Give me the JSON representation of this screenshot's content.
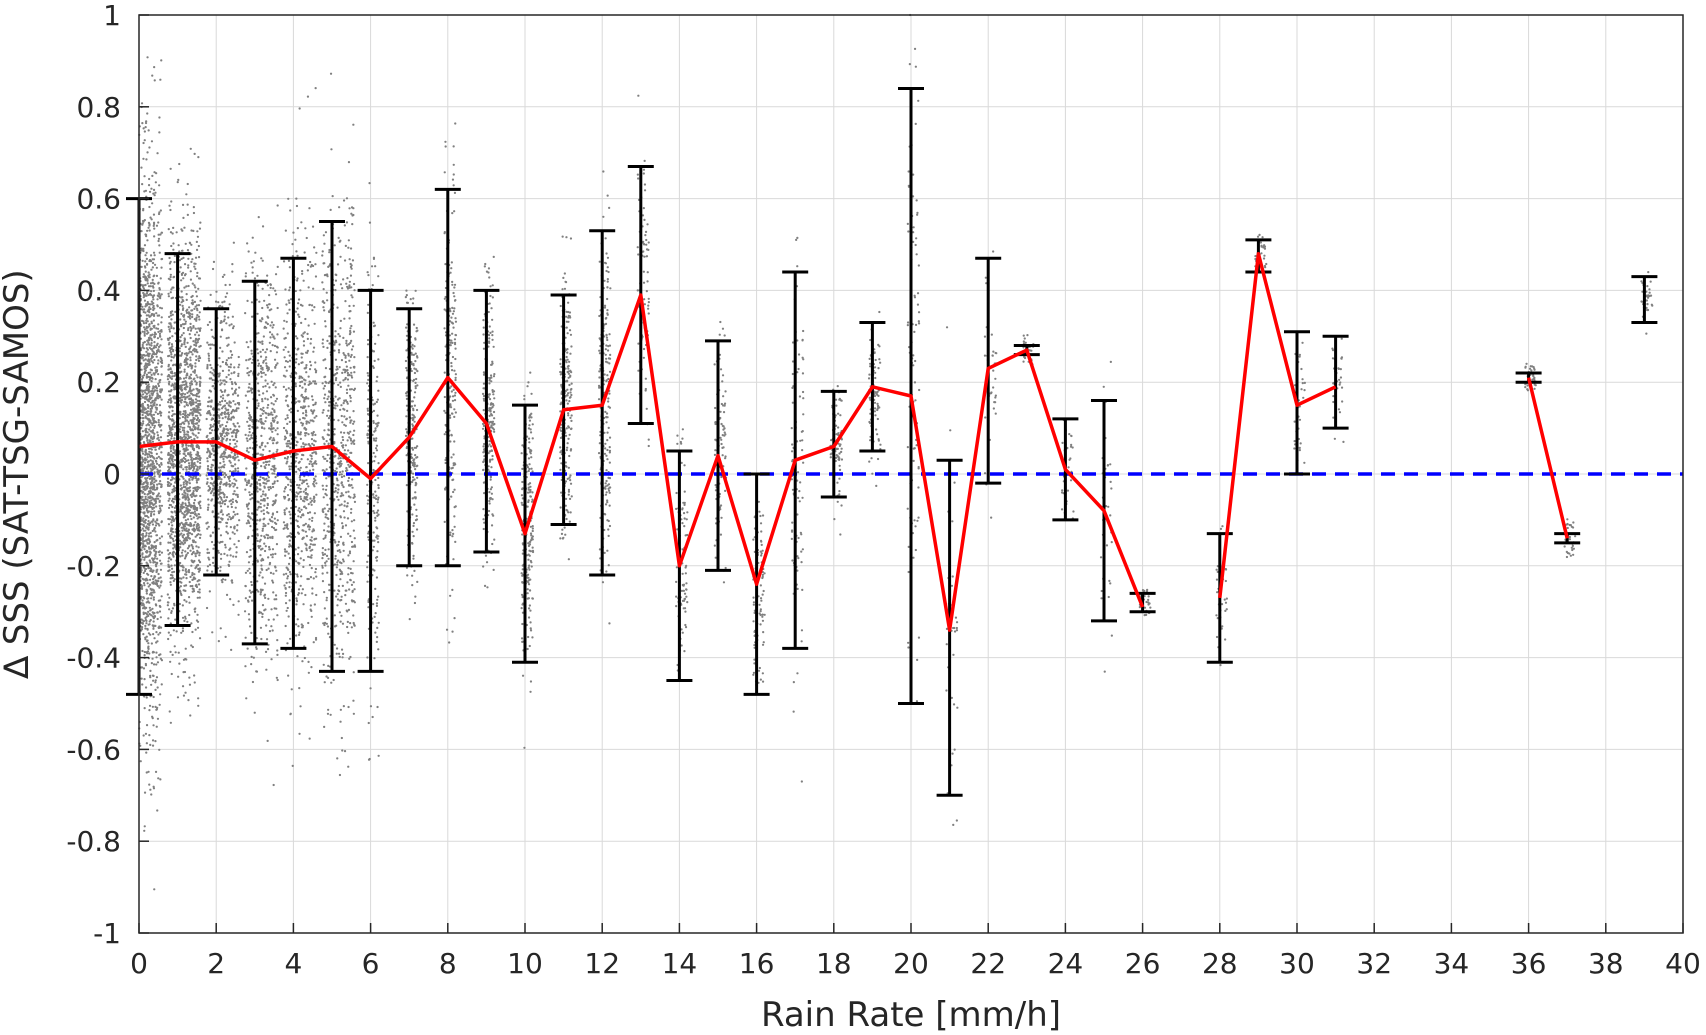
{
  "chart_data": {
    "type": "scatter",
    "xlabel": "Rain Rate [mm/h]",
    "ylabel": "∆ SSS (SAT-TSG-SAMOS)",
    "xlim": [
      0,
      40
    ],
    "ylim": [
      -1,
      1
    ],
    "xticks": [
      "0",
      "2",
      "4",
      "6",
      "8",
      "10",
      "12",
      "14",
      "16",
      "18",
      "20",
      "22",
      "24",
      "26",
      "28",
      "30",
      "32",
      "34",
      "36",
      "38",
      "40"
    ],
    "yticks": [
      "1",
      "0.8",
      "0.6",
      "0.4",
      "0.2",
      "0",
      "-0.2",
      "-0.4",
      "-0.6",
      "-0.8",
      "-1"
    ],
    "grid": true,
    "colors": {
      "scatter": "#808080",
      "mean_line": "#ff0000",
      "error_bars": "#000000",
      "zero_line": "#0000ff",
      "grid": "#d9d9d9"
    },
    "zero_line": {
      "y": 0,
      "style": "dashed"
    },
    "error_bars": [
      {
        "x": 0,
        "low": -0.48,
        "high": 0.6
      },
      {
        "x": 1,
        "low": -0.33,
        "high": 0.48
      },
      {
        "x": 2,
        "low": -0.22,
        "high": 0.36
      },
      {
        "x": 3,
        "low": -0.37,
        "high": 0.42
      },
      {
        "x": 4,
        "low": -0.38,
        "high": 0.47
      },
      {
        "x": 5,
        "low": -0.43,
        "high": 0.55
      },
      {
        "x": 6,
        "low": -0.43,
        "high": 0.4
      },
      {
        "x": 7,
        "low": -0.2,
        "high": 0.36
      },
      {
        "x": 8,
        "low": -0.2,
        "high": 0.62
      },
      {
        "x": 9,
        "low": -0.17,
        "high": 0.4
      },
      {
        "x": 10,
        "low": -0.41,
        "high": 0.15
      },
      {
        "x": 11,
        "low": -0.11,
        "high": 0.39
      },
      {
        "x": 12,
        "low": -0.22,
        "high": 0.53
      },
      {
        "x": 13,
        "low": 0.11,
        "high": 0.67
      },
      {
        "x": 14,
        "low": -0.45,
        "high": 0.05
      },
      {
        "x": 15,
        "low": -0.21,
        "high": 0.29
      },
      {
        "x": 16,
        "low": -0.48,
        "high": 0.0
      },
      {
        "x": 17,
        "low": -0.38,
        "high": 0.44
      },
      {
        "x": 18,
        "low": -0.05,
        "high": 0.18
      },
      {
        "x": 19,
        "low": 0.05,
        "high": 0.33
      },
      {
        "x": 20,
        "low": -0.5,
        "high": 0.84
      },
      {
        "x": 21,
        "low": -0.7,
        "high": 0.03
      },
      {
        "x": 22,
        "low": -0.02,
        "high": 0.47
      },
      {
        "x": 23,
        "low": 0.26,
        "high": 0.28
      },
      {
        "x": 24,
        "low": -0.1,
        "high": 0.12
      },
      {
        "x": 25,
        "low": -0.32,
        "high": 0.16
      },
      {
        "x": 26,
        "low": -0.3,
        "high": -0.26
      },
      {
        "x": 28,
        "low": -0.41,
        "high": -0.13
      },
      {
        "x": 29,
        "low": 0.44,
        "high": 0.51
      },
      {
        "x": 30,
        "low": 0.0,
        "high": 0.31
      },
      {
        "x": 31,
        "low": 0.1,
        "high": 0.3
      },
      {
        "x": 36,
        "low": 0.2,
        "high": 0.22
      },
      {
        "x": 37,
        "low": -0.15,
        "high": -0.13
      },
      {
        "x": 39,
        "low": 0.33,
        "high": 0.43
      }
    ],
    "series": [
      {
        "x": [
          0,
          1,
          2,
          3,
          4,
          5,
          6,
          7,
          8,
          9,
          10,
          11,
          12,
          13,
          14,
          15,
          16,
          17,
          18,
          19,
          20,
          21,
          22,
          23,
          24,
          25,
          26,
          null,
          28,
          29,
          30,
          31,
          null,
          36,
          37
        ],
        "values": [
          0.06,
          0.07,
          0.07,
          0.03,
          0.05,
          0.06,
          -0.01,
          0.08,
          0.21,
          0.11,
          -0.13,
          0.14,
          0.15,
          0.39,
          -0.2,
          0.04,
          -0.24,
          0.03,
          0.06,
          0.19,
          0.17,
          -0.34,
          0.23,
          0.27,
          0.01,
          -0.08,
          -0.29,
          null,
          -0.27,
          0.48,
          0.15,
          0.19,
          null,
          0.21,
          -0.14
        ]
      }
    ]
  }
}
